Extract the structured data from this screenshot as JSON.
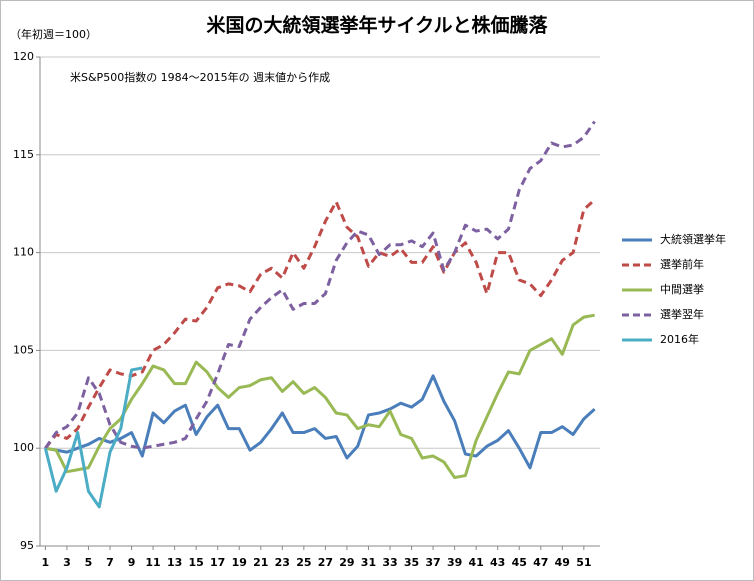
{
  "chart_data": {
    "type": "line",
    "title": "米国の大統領選挙年サイクルと株価騰落",
    "y_label": "（年初週＝100）",
    "annotation": "米S&P500指数の 1984～2015年の 週末値から作成",
    "x": [
      1,
      2,
      3,
      4,
      5,
      6,
      7,
      8,
      9,
      10,
      11,
      12,
      13,
      14,
      15,
      16,
      17,
      18,
      19,
      20,
      21,
      22,
      23,
      24,
      25,
      26,
      27,
      28,
      29,
      30,
      31,
      32,
      33,
      34,
      35,
      36,
      37,
      38,
      39,
      40,
      41,
      42,
      43,
      44,
      45,
      46,
      47,
      48,
      49,
      50,
      51,
      52
    ],
    "xlim": [
      0.5,
      52.5
    ],
    "xticks": [
      1,
      3,
      5,
      7,
      9,
      11,
      13,
      15,
      17,
      19,
      21,
      23,
      25,
      27,
      29,
      31,
      33,
      35,
      37,
      39,
      41,
      43,
      45,
      47,
      49,
      51
    ],
    "ylim": [
      95,
      120
    ],
    "yticks": [
      95,
      100,
      105,
      110,
      115,
      120
    ],
    "grid": true,
    "legend": "right",
    "series": [
      {
        "name": "大統領選挙年",
        "color": "#4a7ebb",
        "style": "solid",
        "values": [
          100,
          99.9,
          99.8,
          100,
          100.2,
          100.5,
          100.3,
          100.5,
          100.8,
          99.6,
          101.8,
          101.3,
          101.9,
          102.2,
          100.7,
          101.6,
          102.2,
          101,
          101,
          99.9,
          100.3,
          101,
          101.8,
          100.8,
          100.8,
          101,
          100.5,
          100.6,
          99.5,
          100.1,
          101.7,
          101.8,
          102,
          102.3,
          102.1,
          102.5,
          103.7,
          102.4,
          101.4,
          99.7,
          99.6,
          100.1,
          100.4,
          100.9,
          100,
          99,
          100.8,
          100.8,
          101.1,
          100.7,
          101.5,
          102
        ]
      },
      {
        "name": "選挙前年",
        "color": "#be4b48",
        "style": "dashed",
        "values": [
          100,
          100.7,
          100.5,
          101,
          102.1,
          103.1,
          104,
          103.8,
          103.7,
          103.9,
          105,
          105.3,
          105.9,
          106.6,
          106.5,
          107.2,
          108.2,
          108.4,
          108.3,
          108,
          108.9,
          109.2,
          108.7,
          110,
          109.2,
          110.3,
          111.6,
          112.6,
          111.3,
          110.8,
          109.3,
          110,
          109.8,
          110.2,
          109.5,
          109.5,
          110.3,
          109,
          110,
          110.5,
          109.5,
          107.9,
          110,
          110,
          108.6,
          108.4,
          107.8,
          108.6,
          109.6,
          110,
          112.2,
          112.7
        ]
      },
      {
        "name": "中間選挙",
        "color": "#98b954",
        "style": "solid",
        "values": [
          100,
          99.9,
          98.8,
          98.9,
          99,
          100.1,
          101,
          101.5,
          102.5,
          103.3,
          104.2,
          104,
          103.3,
          103.3,
          104.4,
          103.9,
          103.1,
          102.6,
          103.1,
          103.2,
          103.5,
          103.6,
          102.9,
          103.4,
          102.8,
          103.1,
          102.6,
          101.8,
          101.7,
          101,
          101.2,
          101.1,
          101.9,
          100.7,
          100.5,
          99.5,
          99.6,
          99.3,
          98.5,
          98.6,
          100.4,
          101.6,
          102.8,
          103.9,
          103.8,
          105,
          105.3,
          105.6,
          104.8,
          106.3,
          106.7,
          106.8
        ]
      },
      {
        "name": "選挙翌年",
        "color": "#7d60a0",
        "style": "dashed",
        "values": [
          100,
          100.8,
          101.1,
          101.8,
          103.6,
          102.8,
          101.2,
          100.3,
          100.1,
          100,
          100.1,
          100.2,
          100.3,
          100.5,
          101.5,
          102.4,
          103.8,
          105.3,
          105.2,
          106.6,
          107.2,
          107.7,
          108.1,
          107.1,
          107.4,
          107.4,
          107.9,
          109.6,
          110.5,
          111.1,
          110.9,
          109.9,
          110.4,
          110.4,
          110.6,
          110.3,
          111,
          109.1,
          110,
          111.4,
          111.1,
          111.2,
          110.7,
          111.2,
          113.2,
          114.3,
          114.7,
          115.6,
          115.4,
          115.5,
          115.9,
          116.7
        ]
      },
      {
        "name": "2016年",
        "color": "#4bacc6",
        "style": "solid",
        "values": [
          100,
          97.8,
          99,
          100.8,
          97.8,
          97,
          99.8,
          101,
          104,
          104.1,
          null,
          null,
          null,
          null,
          null,
          null,
          null,
          null,
          null,
          null,
          null,
          null,
          null,
          null,
          null,
          null,
          null,
          null,
          null,
          null,
          null,
          null,
          null,
          null,
          null,
          null,
          null,
          null,
          null,
          null,
          null,
          null,
          null,
          null,
          null,
          null,
          null,
          null,
          null,
          null,
          null,
          null
        ]
      }
    ]
  }
}
